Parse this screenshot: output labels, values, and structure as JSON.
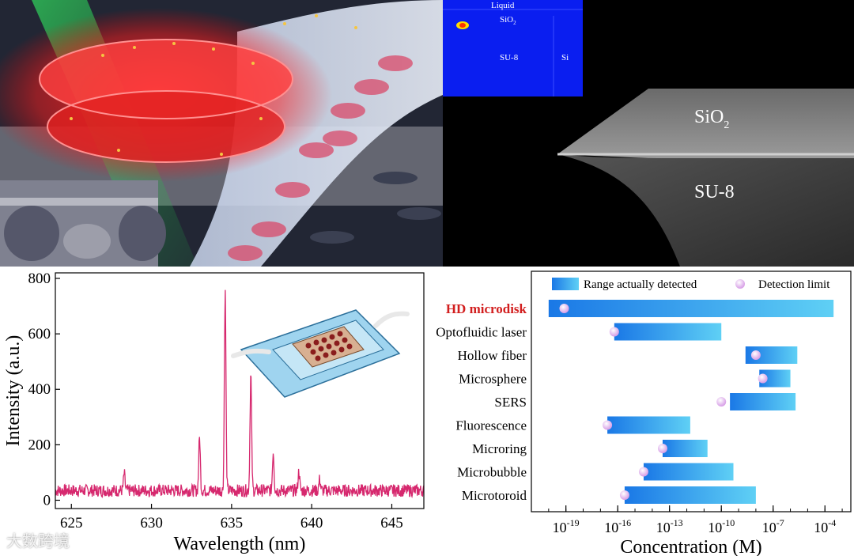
{
  "sim_labels": {
    "liquid": "Liquid",
    "sio2_main": "SiO",
    "sio2_sub": "2",
    "su8": "SU-8",
    "si": "Si"
  },
  "sem_labels": {
    "sio2_main": "SiO",
    "sio2_sub": "2",
    "su8": "SU-8"
  },
  "colors": {
    "spectrum": "#d6286e",
    "bar_start": "#1a78e6",
    "bar_end": "#5fd0f5",
    "dot": "#d9a3e8",
    "highlight": "#d21e1e",
    "sim_bg": "#0a1ef0"
  },
  "chart_data": [
    {
      "type": "line",
      "xlabel": "Wavelength (nm)",
      "ylabel": "Intensity (a.u.)",
      "xlim": [
        624,
        647
      ],
      "ylim": [
        -30,
        820
      ],
      "xticks": [
        625,
        630,
        635,
        640,
        645
      ],
      "yticks": [
        0,
        200,
        400,
        600,
        800
      ],
      "peaks": [
        {
          "x": 628.3,
          "y": 95
        },
        {
          "x": 633.0,
          "y": 225
        },
        {
          "x": 634.6,
          "y": 750
        },
        {
          "x": 636.2,
          "y": 455
        },
        {
          "x": 637.6,
          "y": 175
        },
        {
          "x": 639.2,
          "y": 105
        },
        {
          "x": 640.5,
          "y": 75
        }
      ],
      "baseline": 35
    },
    {
      "type": "bar",
      "orientation": "horizontal",
      "xlabel": "Concentration (M)",
      "xscale": "log",
      "xlim_exp": [
        -21,
        -2.5
      ],
      "xtick_labels": [
        {
          "base": "10",
          "exp": "-19",
          "e": -19
        },
        {
          "base": "10",
          "exp": "-16",
          "e": -16
        },
        {
          "base": "10",
          "exp": "-13",
          "e": -13
        },
        {
          "base": "10",
          "exp": "-10",
          "e": -10
        },
        {
          "base": "10",
          "exp": "-7",
          "e": -7
        },
        {
          "base": "10",
          "exp": "-4",
          "e": -4
        }
      ],
      "legend": {
        "range": "Range actually detected",
        "limit": "Detection limit"
      },
      "rows": [
        {
          "label": "HD microdisk",
          "lo": -20,
          "hi": -3.5,
          "limit": -19.1,
          "highlight": true
        },
        {
          "label": "Optofluidic laser",
          "lo": -16.2,
          "hi": -10,
          "limit": -16.2,
          "highlight": false
        },
        {
          "label": "Hollow fiber",
          "lo": -8.6,
          "hi": -5.6,
          "limit": -8,
          "highlight": false
        },
        {
          "label": "Microsphere",
          "lo": -7.8,
          "hi": -6,
          "limit": -7.6,
          "highlight": false
        },
        {
          "label": "SERS",
          "lo": -9.5,
          "hi": -5.7,
          "limit": -10,
          "highlight": false
        },
        {
          "label": "Fluorescence",
          "lo": -16.6,
          "hi": -11.8,
          "limit": -16.6,
          "highlight": false
        },
        {
          "label": "Microring",
          "lo": -13.4,
          "hi": -10.8,
          "limit": -13.4,
          "highlight": false
        },
        {
          "label": "Microbubble",
          "lo": -14.5,
          "hi": -9.3,
          "limit": -14.5,
          "highlight": false
        },
        {
          "label": "Microtoroid",
          "lo": -15.6,
          "hi": -8,
          "limit": -15.6,
          "highlight": false
        }
      ]
    }
  ],
  "watermark": "大数跨境"
}
